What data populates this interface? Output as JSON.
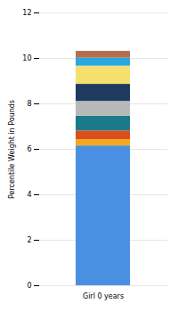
{
  "chart_data": {
    "type": "bar",
    "stacked": true,
    "ylabel": "Percentile Weight in Pounds",
    "categories": [
      "Girl 0 years"
    ],
    "series": [
      {
        "color": "#4a90e2",
        "values": [
          6.15
        ]
      },
      {
        "color": "#f5a820",
        "values": [
          0.28
        ]
      },
      {
        "color": "#d94f1e",
        "values": [
          0.38
        ]
      },
      {
        "color": "#1a7a8a",
        "values": [
          0.65
        ]
      },
      {
        "color": "#b8b8b8",
        "values": [
          0.65
        ]
      },
      {
        "color": "#1e3a5f",
        "values": [
          0.75
        ]
      },
      {
        "color": "#f5e06e",
        "values": [
          0.8
        ]
      },
      {
        "color": "#29a8e0",
        "values": [
          0.35
        ]
      },
      {
        "color": "#b07050",
        "values": [
          0.3
        ]
      }
    ],
    "ylim": [
      0,
      12
    ],
    "yticks": [
      0,
      2,
      4,
      6,
      8,
      10,
      12
    ],
    "grid": true
  }
}
